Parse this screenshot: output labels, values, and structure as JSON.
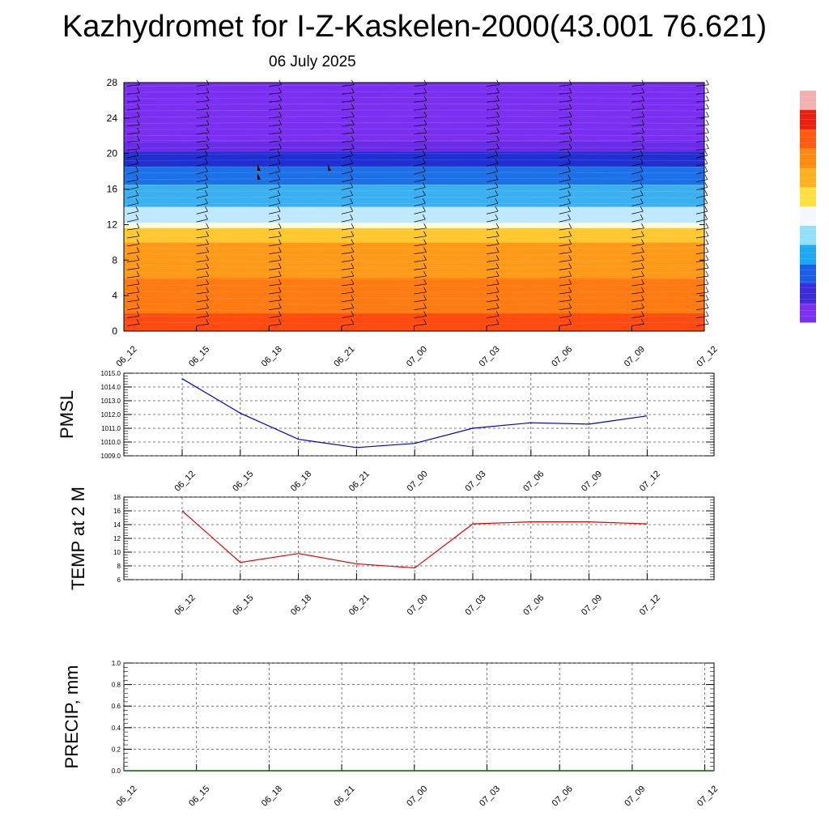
{
  "header": {
    "title": "Kazhydromet for I-Z-Kaskelen-2000(43.001 76.621)",
    "date": "06 July 2025"
  },
  "colors": {
    "pmsl_line": "#0000cc",
    "temp_line": "#e00000",
    "precip_line": "#006400",
    "grid": "#555555",
    "colorbar_stops": [
      "#7b2ff0",
      "#3b2bd8",
      "#1a5ee8",
      "#1aa8f0",
      "#8fe0f8",
      "#f4f8fc",
      "#ffe040",
      "#ffb020",
      "#ff8a10",
      "#ff5a10",
      "#e82010",
      "#f2b0b0"
    ]
  },
  "chart_data": [
    {
      "type": "heatmap",
      "name": "profile",
      "title": "",
      "xlabel": "",
      "ylabel": "",
      "categories": [
        "06_12",
        "06_15",
        "06_18",
        "06_21",
        "07_00",
        "07_03",
        "07_06",
        "07_09",
        "07_12"
      ],
      "yticks": [
        "0",
        "4",
        "8",
        "12",
        "16",
        "20",
        "24",
        "28"
      ],
      "ylim": [
        0,
        28
      ],
      "bands": [
        {
          "from": 0,
          "to": 2,
          "color": "#ff4a10"
        },
        {
          "from": 2,
          "to": 6,
          "color": "#ff7a10"
        },
        {
          "from": 6,
          "to": 10,
          "color": "#ff9a18"
        },
        {
          "from": 10,
          "to": 11.6,
          "color": "#ffc830"
        },
        {
          "from": 11.6,
          "to": 12.2,
          "color": "#fffbe0"
        },
        {
          "from": 12.2,
          "to": 14,
          "color": "#bfe8fa"
        },
        {
          "from": 14,
          "to": 16.5,
          "color": "#3ab0f0"
        },
        {
          "from": 16.5,
          "to": 18.5,
          "color": "#1c70e8"
        },
        {
          "from": 18.5,
          "to": 20.2,
          "color": "#2030d0"
        },
        {
          "from": 20.2,
          "to": 21.5,
          "color": "#6a2ce8"
        },
        {
          "from": 21.5,
          "to": 28,
          "color": "#7b2ff0"
        }
      ],
      "grid": false,
      "legend": "colorbar right"
    },
    {
      "type": "line",
      "name": "pmsl",
      "title": "",
      "ylabel": "PMSL",
      "xlabel": "",
      "x": [
        "06_12",
        "06_15",
        "06_18",
        "06_21",
        "07_00",
        "07_03",
        "07_06",
        "07_09",
        "07_12"
      ],
      "y": [
        1014.6,
        1012.1,
        1010.2,
        1009.6,
        1009.9,
        1011.0,
        1011.4,
        1011.3,
        1011.9
      ],
      "yticks": [
        "1009.0",
        "1010.0",
        "1011.0",
        "1012.0",
        "1013.0",
        "1014.0",
        "1015.0"
      ],
      "ylim": [
        1009,
        1015
      ],
      "grid": true
    },
    {
      "type": "line",
      "name": "temp",
      "title": "",
      "ylabel": "TEMP at 2 M",
      "xlabel": "",
      "x": [
        "06_12",
        "06_15",
        "06_18",
        "06_21",
        "07_00",
        "07_03",
        "07_06",
        "07_09",
        "07_12"
      ],
      "y": [
        16.0,
        8.5,
        9.8,
        8.3,
        7.7,
        14.1,
        14.4,
        14.4,
        14.1
      ],
      "yticks": [
        "6",
        "8",
        "10",
        "12",
        "14",
        "16",
        "18"
      ],
      "ylim": [
        6,
        18
      ],
      "grid": true
    },
    {
      "type": "line",
      "name": "precip",
      "title": "",
      "ylabel": "PRECIP, mm",
      "xlabel": "",
      "x": [
        "06_12",
        "06_15",
        "06_18",
        "06_21",
        "07_00",
        "07_03",
        "07_06",
        "07_09",
        "07_12"
      ],
      "y": [
        0,
        0,
        0,
        0,
        0,
        0,
        0,
        0,
        0
      ],
      "yticks": [
        "0.0",
        "0.2",
        "0.4",
        "0.6",
        "0.8",
        "1.0"
      ],
      "ylim": [
        0,
        1
      ],
      "grid": true
    }
  ]
}
